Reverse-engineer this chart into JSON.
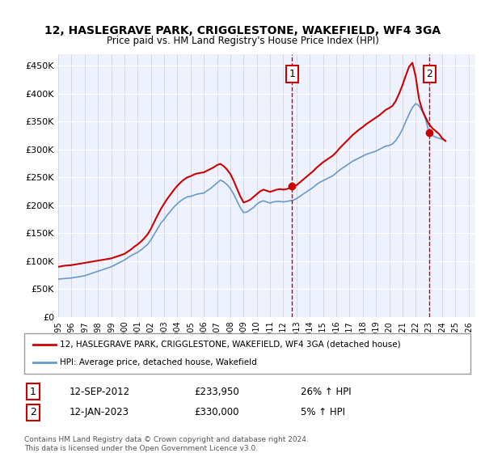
{
  "title1": "12, HASLEGRAVE PARK, CRIGGLESTONE, WAKEFIELD, WF4 3GA",
  "title2": "Price paid vs. HM Land Registry's House Price Index (HPI)",
  "ylabel": "",
  "background_color": "#f0f4ff",
  "plot_bg_color": "#eef2ff",
  "hatch_color": "#ccccff",
  "line1_color": "#cc0000",
  "line2_color": "#6699cc",
  "marker1_color": "#cc0000",
  "ylim": [
    0,
    470000
  ],
  "yticks": [
    0,
    50000,
    100000,
    150000,
    200000,
    250000,
    300000,
    350000,
    400000,
    450000
  ],
  "ytick_labels": [
    "£0",
    "£50K",
    "£100K",
    "£150K",
    "£200K",
    "£250K",
    "£300K",
    "£350K",
    "£400K",
    "£450K"
  ],
  "years": [
    1995,
    1996,
    1997,
    1998,
    1999,
    2000,
    2001,
    2002,
    2003,
    2004,
    2005,
    2006,
    2007,
    2008,
    2009,
    2010,
    2011,
    2012,
    2013,
    2014,
    2015,
    2016,
    2017,
    2018,
    2019,
    2020,
    2021,
    2022,
    2023,
    2024,
    2025,
    2026
  ],
  "xtick_labels": [
    "1995",
    "1996",
    "1997",
    "1998",
    "1999",
    "2000",
    "2001",
    "2002",
    "2003",
    "2004",
    "2005",
    "2006",
    "2007",
    "2008",
    "2009",
    "2010",
    "2011",
    "2012",
    "2013",
    "2014",
    "2015",
    "2016",
    "2017",
    "2018",
    "2019",
    "2020",
    "2021",
    "2022",
    "2023",
    "2024",
    "2025",
    "2026"
  ],
  "hpi_x": [
    1995.0,
    1995.25,
    1995.5,
    1995.75,
    1996.0,
    1996.25,
    1996.5,
    1996.75,
    1997.0,
    1997.25,
    1997.5,
    1997.75,
    1998.0,
    1998.25,
    1998.5,
    1998.75,
    1999.0,
    1999.25,
    1999.5,
    1999.75,
    2000.0,
    2000.25,
    2000.5,
    2000.75,
    2001.0,
    2001.25,
    2001.5,
    2001.75,
    2002.0,
    2002.25,
    2002.5,
    2002.75,
    2003.0,
    2003.25,
    2003.5,
    2003.75,
    2004.0,
    2004.25,
    2004.5,
    2004.75,
    2005.0,
    2005.25,
    2005.5,
    2005.75,
    2006.0,
    2006.25,
    2006.5,
    2006.75,
    2007.0,
    2007.25,
    2007.5,
    2007.75,
    2008.0,
    2008.25,
    2008.5,
    2008.75,
    2009.0,
    2009.25,
    2009.5,
    2009.75,
    2010.0,
    2010.25,
    2010.5,
    2010.75,
    2011.0,
    2011.25,
    2011.5,
    2011.75,
    2012.0,
    2012.25,
    2012.5,
    2012.75,
    2013.0,
    2013.25,
    2013.5,
    2013.75,
    2014.0,
    2014.25,
    2014.5,
    2014.75,
    2015.0,
    2015.25,
    2015.5,
    2015.75,
    2016.0,
    2016.25,
    2016.5,
    2016.75,
    2017.0,
    2017.25,
    2017.5,
    2017.75,
    2018.0,
    2018.25,
    2018.5,
    2018.75,
    2019.0,
    2019.25,
    2019.5,
    2019.75,
    2020.0,
    2020.25,
    2020.5,
    2020.75,
    2021.0,
    2021.25,
    2021.5,
    2021.75,
    2022.0,
    2022.25,
    2022.5,
    2022.75,
    2023.0,
    2023.25,
    2023.5,
    2023.75,
    2024.0,
    2024.25
  ],
  "hpi_y": [
    68000,
    68500,
    69000,
    69500,
    70000,
    71000,
    72000,
    73000,
    74000,
    76000,
    78000,
    80000,
    82000,
    84000,
    86000,
    88000,
    90000,
    93000,
    96000,
    99000,
    102000,
    106000,
    110000,
    113000,
    116000,
    120000,
    125000,
    130000,
    138000,
    148000,
    158000,
    168000,
    175000,
    183000,
    190000,
    197000,
    203000,
    208000,
    212000,
    215000,
    216000,
    218000,
    220000,
    221000,
    222000,
    226000,
    230000,
    235000,
    240000,
    245000,
    242000,
    237000,
    230000,
    220000,
    208000,
    196000,
    187000,
    188000,
    192000,
    196000,
    202000,
    206000,
    208000,
    206000,
    204000,
    206000,
    207000,
    207000,
    206000,
    207000,
    208000,
    209000,
    212000,
    216000,
    220000,
    224000,
    228000,
    232000,
    237000,
    241000,
    244000,
    247000,
    250000,
    253000,
    258000,
    263000,
    267000,
    271000,
    275000,
    279000,
    282000,
    285000,
    288000,
    291000,
    293000,
    295000,
    297000,
    300000,
    303000,
    306000,
    307000,
    310000,
    316000,
    325000,
    336000,
    350000,
    363000,
    375000,
    382000,
    378000,
    368000,
    354000,
    330000,
    325000,
    322000,
    320000,
    318000,
    316000
  ],
  "hpi_line_x": [
    1995.0,
    1995.25,
    1995.5,
    1995.75,
    1996.0,
    1996.25,
    1996.5,
    1996.75,
    1997.0,
    1997.25,
    1997.5,
    1997.75,
    1998.0,
    1998.25,
    1998.5,
    1998.75,
    1999.0,
    1999.25,
    1999.5,
    1999.75,
    2000.0,
    2000.25,
    2000.5,
    2000.75,
    2001.0,
    2001.25,
    2001.5,
    2001.75,
    2002.0,
    2002.25,
    2002.5,
    2002.75,
    2003.0,
    2003.25,
    2003.5,
    2003.75,
    2004.0,
    2004.25,
    2004.5,
    2004.75,
    2005.0,
    2005.25,
    2005.5,
    2005.75,
    2006.0,
    2006.25,
    2006.5,
    2006.75,
    2007.0,
    2007.25,
    2007.5,
    2007.75,
    2008.0,
    2008.25,
    2008.5,
    2008.75,
    2009.0,
    2009.25,
    2009.5,
    2009.75,
    2010.0,
    2010.25,
    2010.5,
    2010.75,
    2011.0,
    2011.25,
    2011.5,
    2011.75,
    2012.0,
    2012.25,
    2012.5,
    2012.75,
    2013.0,
    2013.25,
    2013.5,
    2013.75,
    2014.0,
    2014.25,
    2014.5,
    2014.75,
    2015.0,
    2015.25,
    2015.5,
    2015.75,
    2016.0,
    2016.25,
    2016.5,
    2016.75,
    2017.0,
    2017.25,
    2017.5,
    2017.75,
    2018.0,
    2018.25,
    2018.5,
    2018.75,
    2019.0,
    2019.25,
    2019.5,
    2019.75,
    2020.0,
    2020.25,
    2020.5,
    2020.75,
    2021.0,
    2021.25,
    2021.5,
    2021.75,
    2022.0,
    2022.25,
    2022.5,
    2022.75,
    2023.0,
    2023.25,
    2023.5,
    2023.75,
    2024.0,
    2024.25
  ],
  "price_line_x": [
    1995.0,
    1995.25,
    1995.5,
    1995.75,
    1996.0,
    1996.25,
    1996.5,
    1996.75,
    1997.0,
    1997.25,
    1997.5,
    1997.75,
    1998.0,
    1998.25,
    1998.5,
    1998.75,
    1999.0,
    1999.25,
    1999.5,
    1999.75,
    2000.0,
    2000.25,
    2000.5,
    2000.75,
    2001.0,
    2001.25,
    2001.5,
    2001.75,
    2002.0,
    2002.25,
    2002.5,
    2002.75,
    2003.0,
    2003.25,
    2003.5,
    2003.75,
    2004.0,
    2004.25,
    2004.5,
    2004.75,
    2005.0,
    2005.25,
    2005.5,
    2005.75,
    2006.0,
    2006.25,
    2006.5,
    2006.75,
    2007.0,
    2007.25,
    2007.5,
    2007.75,
    2008.0,
    2008.25,
    2008.5,
    2008.75,
    2009.0,
    2009.25,
    2009.5,
    2009.75,
    2010.0,
    2010.25,
    2010.5,
    2010.75,
    2011.0,
    2011.25,
    2011.5,
    2011.75,
    2012.0,
    2012.25,
    2012.5,
    2012.75,
    2013.0,
    2013.25,
    2013.5,
    2013.75,
    2014.0,
    2014.25,
    2014.5,
    2014.75,
    2015.0,
    2015.25,
    2015.5,
    2015.75,
    2016.0,
    2016.25,
    2016.5,
    2016.75,
    2017.0,
    2017.25,
    2017.5,
    2017.75,
    2018.0,
    2018.25,
    2018.5,
    2018.75,
    2019.0,
    2019.25,
    2019.5,
    2019.75,
    2020.0,
    2020.25,
    2020.5,
    2020.75,
    2021.0,
    2021.25,
    2021.5,
    2021.75,
    2022.0,
    2022.25,
    2022.5,
    2022.75,
    2023.0,
    2023.25,
    2023.5,
    2023.75,
    2024.0,
    2024.25
  ],
  "price_line_y": [
    90000,
    91000,
    92000,
    92500,
    93000,
    94000,
    95000,
    96000,
    97000,
    98000,
    99000,
    100000,
    101000,
    102000,
    103000,
    104000,
    105000,
    107000,
    109000,
    111000,
    113000,
    117000,
    121000,
    126000,
    130000,
    135000,
    141000,
    148000,
    158000,
    170000,
    182000,
    193000,
    203000,
    212000,
    220000,
    228000,
    235000,
    241000,
    246000,
    250000,
    252000,
    255000,
    257000,
    258000,
    259000,
    262000,
    265000,
    268000,
    272000,
    274000,
    270000,
    264000,
    256000,
    244000,
    230000,
    216000,
    205000,
    207000,
    210000,
    215000,
    220000,
    225000,
    228000,
    226000,
    224000,
    226000,
    228000,
    229000,
    228000,
    229000,
    231000,
    233000,
    236000,
    241000,
    246000,
    251000,
    256000,
    261000,
    267000,
    272000,
    277000,
    281000,
    285000,
    289000,
    295000,
    302000,
    308000,
    314000,
    320000,
    326000,
    331000,
    336000,
    340000,
    345000,
    349000,
    353000,
    357000,
    361000,
    366000,
    371000,
    374000,
    378000,
    387000,
    400000,
    415000,
    432000,
    448000,
    455000,
    430000,
    390000,
    370000,
    357000,
    345000,
    338000,
    333000,
    328000,
    320000,
    315000
  ],
  "sale1_x": 2012.67,
  "sale1_y": 233950,
  "sale2_x": 2023.04,
  "sale2_y": 330000,
  "sale1_label": "1",
  "sale2_label": "2",
  "sale1_date": "12-SEP-2012",
  "sale1_price": "£233,950",
  "sale1_hpi": "26% ↑ HPI",
  "sale2_date": "12-JAN-2023",
  "sale2_price": "£330,000",
  "sale2_hpi": "5% ↑ HPI",
  "legend1": "12, HASLEGRAVE PARK, CRIGGLESTONE, WAKEFIELD, WF4 3GA (detached house)",
  "legend2": "HPI: Average price, detached house, Wakefield",
  "footnote1": "Contains HM Land Registry data © Crown copyright and database right 2024.",
  "footnote2": "This data is licensed under the Open Government Licence v3.0.",
  "hatch_start": 2024.25,
  "xlim_left": 1995,
  "xlim_right": 2026.5
}
